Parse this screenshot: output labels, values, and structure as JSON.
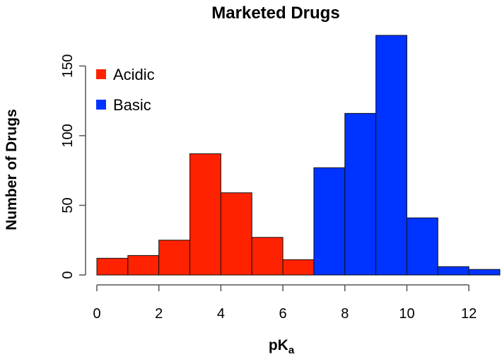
{
  "chart_data": {
    "type": "bar",
    "title": "Marketed Drugs",
    "xlabel": {
      "main": "pK",
      "sub": "a"
    },
    "ylabel": "Number of Drugs",
    "xlim": [
      0,
      13
    ],
    "ylim": [
      0,
      172
    ],
    "xticks": [
      "0",
      "2",
      "4",
      "6",
      "8",
      "10",
      "12"
    ],
    "yticks": [
      "0",
      "50",
      "100",
      "150"
    ],
    "grid": false,
    "legend_position": "top-left",
    "series": [
      {
        "name": "Acidic",
        "color": "#ff2200",
        "bins": [
          {
            "x0": 0,
            "x1": 1,
            "count": 12
          },
          {
            "x0": 1,
            "x1": 2,
            "count": 14
          },
          {
            "x0": 2,
            "x1": 3,
            "count": 25
          },
          {
            "x0": 3,
            "x1": 4,
            "count": 87
          },
          {
            "x0": 4,
            "x1": 5,
            "count": 59
          },
          {
            "x0": 5,
            "x1": 6,
            "count": 27
          },
          {
            "x0": 6,
            "x1": 7,
            "count": 11
          }
        ]
      },
      {
        "name": "Basic",
        "color": "#0033ff",
        "bins": [
          {
            "x0": 7,
            "x1": 8,
            "count": 77
          },
          {
            "x0": 8,
            "x1": 9,
            "count": 116
          },
          {
            "x0": 9,
            "x1": 10,
            "count": 172
          },
          {
            "x0": 10,
            "x1": 11,
            "count": 41
          },
          {
            "x0": 11,
            "x1": 12,
            "count": 6
          },
          {
            "x0": 12,
            "x1": 13,
            "count": 4
          }
        ]
      }
    ]
  }
}
